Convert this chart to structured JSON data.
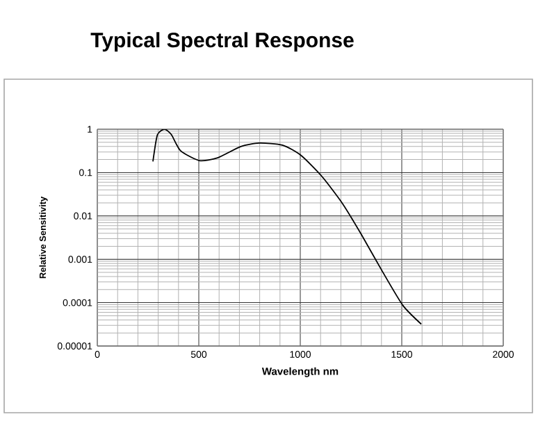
{
  "chart_data": {
    "type": "line",
    "title": "Typical Spectral Response",
    "xlabel": "Wavelength nm",
    "ylabel": "Relative Sensitivity",
    "log": "y",
    "grid": true,
    "x": [
      274,
      296,
      331,
      365,
      410,
      502,
      593,
      707,
      798,
      912,
      1003,
      1106,
      1209,
      1300,
      1403,
      1505,
      1596
    ],
    "series": [
      {
        "color": "#000000",
        "values": [
          0.18,
          0.74,
          1.0,
          0.75,
          0.32,
          0.19,
          0.22,
          0.4,
          0.48,
          0.43,
          0.25,
          0.082,
          0.019,
          0.0038,
          0.00054,
          8.7e-05,
          3.2e-05
        ]
      }
    ],
    "xlim": [
      0,
      2000
    ],
    "xticks": [
      0,
      500,
      1000,
      1500,
      2000
    ],
    "ylim": [
      1e-05,
      1
    ],
    "yticks": [
      {
        "value": 1e-05,
        "label": "0.00001"
      },
      {
        "value": 0.0001,
        "label": "0.0001"
      },
      {
        "value": 0.001,
        "label": "0.001"
      },
      {
        "value": 0.01,
        "label": "0.01"
      },
      {
        "value": 0.1,
        "label": "0.1"
      },
      {
        "value": 1,
        "label": "1"
      }
    ]
  }
}
